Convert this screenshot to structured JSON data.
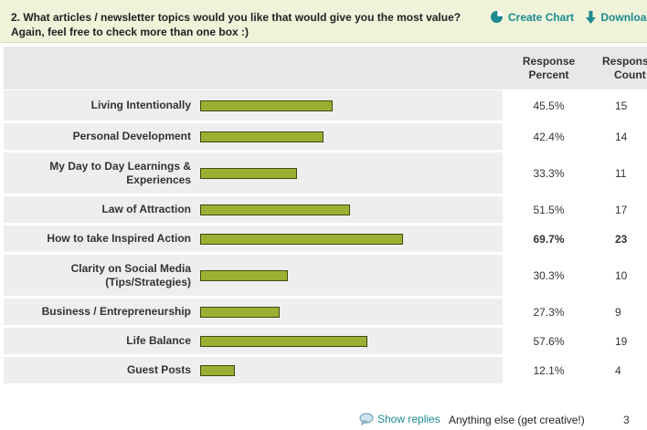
{
  "question": {
    "line1": "2. What articles / newsletter topics would you like that would give you the most value?",
    "line2": "Again, feel free to check more than one box :)"
  },
  "actions": {
    "create_chart": "Create Chart",
    "download": "Downloa"
  },
  "table": {
    "headers": {
      "percent_line1": "Response",
      "percent_line2": "Percent",
      "count_line1": "Respons",
      "count_line2": "Count"
    },
    "rows": [
      {
        "label_line1": "Living Intentionally",
        "label_line2": "",
        "percent_text": "45.5%",
        "percent": 45.5,
        "count": "15",
        "bold": false
      },
      {
        "label_line1": "Personal Development",
        "label_line2": "",
        "percent_text": "42.4%",
        "percent": 42.4,
        "count": "14",
        "bold": false
      },
      {
        "label_line1": "My Day to Day Learnings &",
        "label_line2": "Experiences",
        "percent_text": "33.3%",
        "percent": 33.3,
        "count": "11",
        "bold": false
      },
      {
        "label_line1": "Law of Attraction",
        "label_line2": "",
        "percent_text": "51.5%",
        "percent": 51.5,
        "count": "17",
        "bold": false
      },
      {
        "label_line1": "How to take Inspired Action",
        "label_line2": "",
        "percent_text": "69.7%",
        "percent": 69.7,
        "count": "23",
        "bold": true
      },
      {
        "label_line1": "Clarity on Social Media",
        "label_line2": "(Tips/Strategies)",
        "percent_text": "30.3%",
        "percent": 30.3,
        "count": "10",
        "bold": false
      },
      {
        "label_line1": "Business / Entrepreneurship",
        "label_line2": "",
        "percent_text": "27.3%",
        "percent": 27.3,
        "count": "9",
        "bold": false
      },
      {
        "label_line1": "Life Balance",
        "label_line2": "",
        "percent_text": "57.6%",
        "percent": 57.6,
        "count": "19",
        "bold": false
      },
      {
        "label_line1": "Guest Posts",
        "label_line2": "",
        "percent_text": "12.1%",
        "percent": 12.1,
        "count": "4",
        "bold": false
      }
    ]
  },
  "other": {
    "show_replies": "Show replies",
    "label": "Anything else (get creative!)",
    "count": "3"
  },
  "colors": {
    "bar_fill": "#9bb033",
    "bar_border": "#3f4a10",
    "link": "#1b8a8f",
    "header_bg": "#eef3da"
  }
}
